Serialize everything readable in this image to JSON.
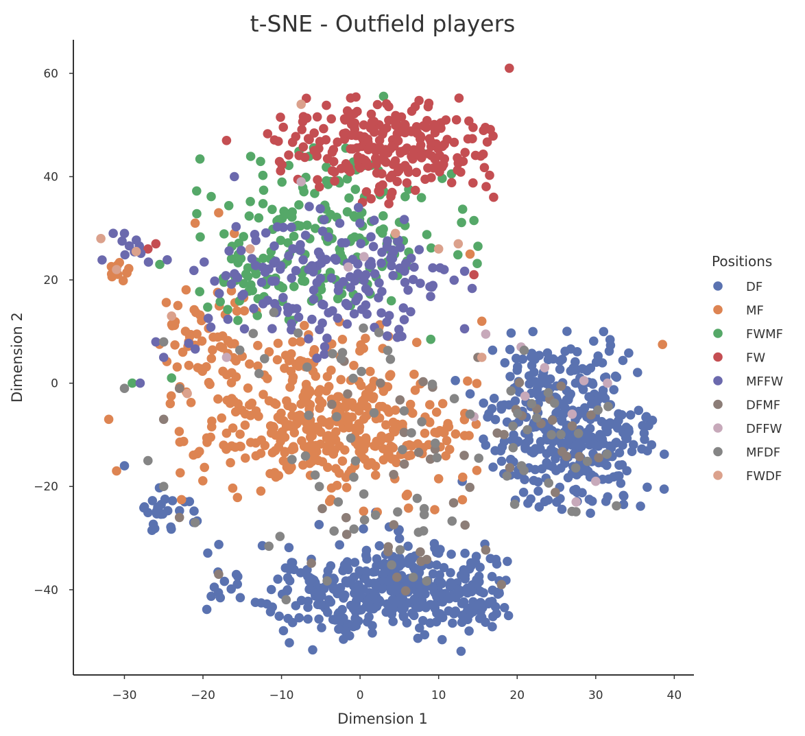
{
  "chart_data": {
    "type": "scatter",
    "title": "t-SNE - Outfield players",
    "xlabel": "Dimension 1",
    "ylabel": "Dimension 2",
    "xlim": [
      -36.5,
      42.5
    ],
    "ylim": [
      -56.5,
      66.5
    ],
    "xticks": [
      -30,
      -20,
      -10,
      0,
      10,
      20,
      30,
      40
    ],
    "yticks": [
      -40,
      -20,
      0,
      20,
      40,
      60
    ],
    "xtick_labels": [
      "−30",
      "−20",
      "−10",
      "0",
      "10",
      "20",
      "30",
      "40"
    ],
    "ytick_labels": [
      "−40",
      "−20",
      "0",
      "20",
      "40",
      "60"
    ],
    "grid": false,
    "legend": {
      "title": "Positions",
      "placement": "right",
      "entries": [
        "DF",
        "MF",
        "FWMF",
        "FW",
        "MFFW",
        "DFMF",
        "DFFW",
        "MFDF",
        "FWDF"
      ]
    },
    "series": [
      {
        "name": "DF",
        "color": "#5a72b0",
        "clusters": [
          {
            "cx": 5,
            "cy": -40,
            "sx": 9.5,
            "sy": 4.5,
            "n": 420,
            "xmin": -20,
            "xmax": 19,
            "ymin": -52,
            "ymax": -25
          },
          {
            "cx": 27,
            "cy": -8,
            "sx": 5.5,
            "sy": 8,
            "n": 360,
            "xmin": 12,
            "xmax": 39,
            "ymin": -26,
            "ymax": 12
          },
          {
            "cx": -25,
            "cy": -25,
            "sx": 2.5,
            "sy": 2,
            "n": 26,
            "xmin": -28,
            "xmax": -18,
            "ymin": -30,
            "ymax": -18
          }
        ],
        "points": [
          [
            13,
            -19
          ],
          [
            18,
            -5
          ],
          [
            16,
            -12
          ],
          [
            -30,
            -16
          ],
          [
            2,
            -25
          ],
          [
            31,
            10
          ],
          [
            22,
            10
          ]
        ]
      },
      {
        "name": "MF",
        "color": "#dd8452",
        "clusters": [
          {
            "cx": -3,
            "cy": -10,
            "sx": 9,
            "sy": 5.5,
            "n": 320,
            "xmin": -25,
            "xmax": 15,
            "ymin": -26,
            "ymax": 2
          },
          {
            "cx": -8,
            "cy": 4,
            "sx": 8,
            "sy": 5,
            "n": 95,
            "xmin": -26,
            "xmax": 12,
            "ymin": -5,
            "ymax": 12
          },
          {
            "cx": -19,
            "cy": 10,
            "sx": 4,
            "sy": 5,
            "n": 42,
            "xmin": -27,
            "xmax": -12,
            "ymin": 2,
            "ymax": 20
          },
          {
            "cx": -31,
            "cy": 21,
            "sx": 0.8,
            "sy": 1.2,
            "n": 12,
            "xmin": -33,
            "xmax": -29,
            "ymin": 18,
            "ymax": 24
          }
        ],
        "points": [
          [
            -32,
            -7
          ],
          [
            -31,
            -17
          ],
          [
            -21,
            31
          ],
          [
            -18,
            33
          ],
          [
            -16,
            29
          ],
          [
            15.5,
            12
          ],
          [
            38.5,
            7.5
          ],
          [
            9.5,
            -24.5
          ],
          [
            10,
            -18.5
          ],
          [
            14,
            25
          ]
        ]
      },
      {
        "name": "FWMF",
        "color": "#55a868",
        "clusters": [
          {
            "cx": -3,
            "cy": 29,
            "sx": 9,
            "sy": 8,
            "n": 165,
            "xmin": -24,
            "xmax": 15,
            "ymin": 12,
            "ymax": 56
          },
          {
            "cx": -14,
            "cy": 20,
            "sx": 4,
            "sy": 4,
            "n": 35,
            "xmin": -22,
            "xmax": -6,
            "ymin": 12,
            "ymax": 30
          }
        ],
        "points": [
          [
            -28,
            26
          ],
          [
            -25.5,
            23
          ],
          [
            -24,
            1
          ],
          [
            -29,
            0
          ],
          [
            9,
            8.5
          ],
          [
            15,
            26.5
          ],
          [
            14.5,
            31.5
          ]
        ]
      },
      {
        "name": "FW",
        "color": "#c44e52",
        "clusters": [
          {
            "cx": 3,
            "cy": 46,
            "sx": 8,
            "sy": 5,
            "n": 240,
            "xmin": -12,
            "xmax": 18,
            "ymin": 34,
            "ymax": 56
          }
        ],
        "points": [
          [
            19,
            61
          ],
          [
            17,
            36
          ],
          [
            14.5,
            21
          ],
          [
            -17,
            47
          ],
          [
            -26,
            27
          ],
          [
            -27,
            26
          ]
        ]
      },
      {
        "name": "MFFW",
        "color": "#6b69ad",
        "clusters": [
          {
            "cx": -4,
            "cy": 19,
            "sx": 9,
            "sy": 7,
            "n": 185,
            "xmin": -26,
            "xmax": 15,
            "ymin": 4,
            "ymax": 41
          },
          {
            "cx": -30,
            "cy": 26,
            "sx": 2,
            "sy": 1.8,
            "n": 10,
            "xmin": -33,
            "xmax": -26,
            "ymin": 22,
            "ymax": 30
          }
        ],
        "points": [
          [
            -16,
            40
          ],
          [
            -25,
            5
          ],
          [
            -26,
            8
          ],
          [
            -28,
            0
          ],
          [
            -30,
            29
          ]
        ]
      },
      {
        "name": "DFMF",
        "color": "#8c7d77",
        "clusters": [
          {
            "cx": 3,
            "cy": -18,
            "sx": 8,
            "sy": 14,
            "n": 30,
            "xmin": -10,
            "xmax": 18,
            "ymin": -42,
            "ymax": 10
          },
          {
            "cx": 24,
            "cy": -8,
            "sx": 5,
            "sy": 9,
            "n": 18,
            "xmin": 17,
            "xmax": 33,
            "ymin": -24,
            "ymax": 12
          }
        ],
        "points": [
          [
            -18,
            -37
          ],
          [
            -23,
            -26
          ],
          [
            -25,
            -7
          ],
          [
            -23,
            -1
          ],
          [
            18,
            -39
          ],
          [
            15,
            5
          ]
        ]
      },
      {
        "name": "DFFW",
        "color": "#c7a9ba",
        "clusters": [],
        "points": [
          [
            -7.5,
            39
          ],
          [
            -1.5,
            22.5
          ],
          [
            0.5,
            24.5
          ],
          [
            16,
            9.5
          ],
          [
            14.5,
            -6.5
          ],
          [
            20.5,
            7
          ],
          [
            21,
            -2.5
          ],
          [
            28.5,
            0.5
          ],
          [
            30,
            -19
          ],
          [
            27.5,
            -23
          ],
          [
            23.5,
            3
          ],
          [
            31.5,
            0
          ],
          [
            27,
            -6
          ],
          [
            -17,
            5
          ]
        ]
      },
      {
        "name": "MFDF",
        "color": "#858585",
        "clusters": [
          {
            "cx": 2,
            "cy": -25,
            "sx": 8,
            "sy": 12,
            "n": 40,
            "xmin": -15,
            "xmax": 18,
            "ymin": -45,
            "ymax": 8
          },
          {
            "cx": 25,
            "cy": -10,
            "sx": 6,
            "sy": 9,
            "n": 26,
            "xmin": 15,
            "xmax": 35,
            "ymin": -25,
            "ymax": 12
          },
          {
            "cx": -5,
            "cy": 8,
            "sx": 8,
            "sy": 4,
            "n": 15,
            "xmin": -18,
            "xmax": 12,
            "ymin": 0,
            "ymax": 14
          }
        ],
        "points": [
          [
            -21,
            -27
          ],
          [
            -25,
            -20
          ],
          [
            -27,
            -15
          ],
          [
            -30,
            -1
          ],
          [
            -25,
            8
          ],
          [
            14,
            -6
          ],
          [
            12,
            -3
          ]
        ]
      },
      {
        "name": "FWDF",
        "color": "#dba18c",
        "clusters": [],
        "points": [
          [
            -33,
            28
          ],
          [
            -7.5,
            54
          ],
          [
            -31,
            22
          ],
          [
            -28.5,
            25.5
          ],
          [
            12.5,
            27
          ],
          [
            15.5,
            5
          ],
          [
            -22,
            -2
          ],
          [
            -24,
            13
          ],
          [
            4.5,
            29
          ],
          [
            10,
            26
          ],
          [
            -14,
            26
          ]
        ]
      }
    ]
  }
}
